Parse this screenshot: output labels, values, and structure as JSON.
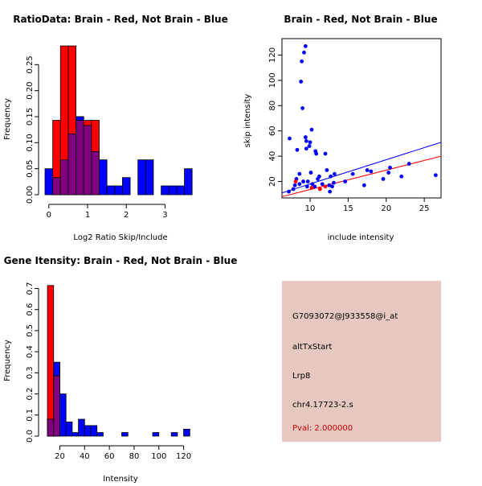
{
  "colors": {
    "brain": "#ff0000",
    "not_brain": "#0000ff",
    "overlap": "#800080",
    "info_bg": "#e6c8c0",
    "pval_text": "#cc0000"
  },
  "chart_data": [
    {
      "id": "ratio_hist",
      "type": "bar",
      "title": "RatioData: Brain - Red, Not Brain - Blue",
      "xlabel": "Log2 Ratio Skip/Include",
      "ylabel": "Frequency",
      "xlim": [
        -0.1,
        3.8
      ],
      "ylim": [
        0,
        0.3
      ],
      "xticks": [
        0,
        1,
        2,
        3
      ],
      "yticks": [
        0.0,
        0.05,
        0.1,
        0.15,
        0.2,
        0.25
      ],
      "ytick_labels": [
        "0.00",
        "0.05",
        "0.10",
        "0.15",
        "0.20",
        "0.25"
      ],
      "bin_width": 0.2,
      "series": [
        {
          "name": "Not Brain",
          "color": "blue",
          "bin_starts": [
            -0.1,
            0.1,
            0.3,
            0.5,
            0.7,
            0.9,
            1.1,
            1.3,
            1.5,
            1.7,
            1.9,
            2.1,
            2.3,
            2.5,
            2.7,
            2.9,
            3.1,
            3.3,
            3.5
          ],
          "values": [
            0.05,
            0.033,
            0.067,
            0.117,
            0.15,
            0.133,
            0.083,
            0.067,
            0.017,
            0.017,
            0.033,
            0,
            0.067,
            0.067,
            0,
            0.017,
            0.017,
            0.017,
            0.05
          ]
        },
        {
          "name": "Brain",
          "color": "red",
          "bin_starts": [
            0.1,
            0.3,
            0.5,
            0.7,
            0.9,
            1.1
          ],
          "values": [
            0.143,
            0.286,
            0.286,
            0.143,
            0.143,
            0.143
          ]
        }
      ]
    },
    {
      "id": "scatter",
      "type": "scatter",
      "title": "Brain - Red, Not Brain - Blue",
      "xlabel": "include intensity",
      "ylabel": "skip intensity",
      "xlim": [
        6.3,
        27.2
      ],
      "ylim": [
        7,
        133
      ],
      "xticks": [
        10,
        15,
        20,
        25
      ],
      "yticks": [
        20,
        40,
        60,
        80,
        100,
        120
      ],
      "series": [
        {
          "name": "Not Brain",
          "color": "blue",
          "points": [
            [
              7.2,
              12
            ],
            [
              7.3,
              54
            ],
            [
              7.8,
              14
            ],
            [
              8.0,
              17
            ],
            [
              8.2,
              22
            ],
            [
              8.3,
              45
            ],
            [
              8.6,
              18
            ],
            [
              8.6,
              26
            ],
            [
              8.8,
              99
            ],
            [
              8.9,
              115
            ],
            [
              9.0,
              78
            ],
            [
              9.1,
              20
            ],
            [
              9.2,
              122
            ],
            [
              9.4,
              127
            ],
            [
              9.4,
              55
            ],
            [
              9.5,
              52
            ],
            [
              9.5,
              46
            ],
            [
              9.6,
              16
            ],
            [
              9.7,
              20
            ],
            [
              9.9,
              48
            ],
            [
              10.0,
              51
            ],
            [
              10.1,
              27
            ],
            [
              10.2,
              61
            ],
            [
              10.3,
              18
            ],
            [
              10.6,
              16
            ],
            [
              10.7,
              44
            ],
            [
              10.8,
              42
            ],
            [
              11.0,
              22
            ],
            [
              11.2,
              24
            ],
            [
              11.6,
              18
            ],
            [
              12.0,
              42
            ],
            [
              12.2,
              29
            ],
            [
              12.5,
              17
            ],
            [
              12.6,
              12
            ],
            [
              12.7,
              24
            ],
            [
              12.9,
              16
            ],
            [
              13.1,
              19
            ],
            [
              13.2,
              26
            ],
            [
              14.6,
              20
            ],
            [
              15.6,
              26
            ],
            [
              17.1,
              17
            ],
            [
              17.5,
              29
            ],
            [
              18.0,
              28
            ],
            [
              19.6,
              22
            ],
            [
              20.3,
              27
            ],
            [
              20.5,
              31
            ],
            [
              22.0,
              24
            ],
            [
              23.0,
              34
            ],
            [
              26.5,
              25
            ]
          ]
        },
        {
          "name": "Brain",
          "color": "red",
          "points": [
            [
              8.1,
              20
            ],
            [
              10.2,
              15
            ],
            [
              11.3,
              14
            ],
            [
              12.0,
              16
            ]
          ]
        }
      ],
      "fit_lines": [
        {
          "name": "Not Brain",
          "color": "blue",
          "from": [
            6.3,
            11
          ],
          "to": [
            27.2,
            51
          ]
        },
        {
          "name": "Brain",
          "color": "red",
          "from": [
            6.3,
            8
          ],
          "to": [
            27.2,
            40
          ]
        }
      ]
    },
    {
      "id": "intensity_hist",
      "type": "bar",
      "title": "Gene Itensity: Brain - Red, Not Brain - Blue",
      "xlabel": "Intensity",
      "ylabel": "Frequency",
      "xlim": [
        8,
        130
      ],
      "ylim": [
        0,
        0.74
      ],
      "xticks": [
        20,
        40,
        60,
        80,
        100,
        120
      ],
      "yticks": [
        0.0,
        0.1,
        0.2,
        0.3,
        0.4,
        0.5,
        0.6,
        0.7
      ],
      "ytick_labels": [
        "0.0",
        "0.1",
        "0.2",
        "0.3",
        "0.4",
        "0.5",
        "0.6",
        "0.7"
      ],
      "bin_width": 5,
      "series": [
        {
          "name": "Not Brain",
          "color": "blue",
          "bin_starts": [
            10,
            15,
            20,
            25,
            30,
            35,
            40,
            45,
            50,
            55,
            60,
            65,
            70,
            75,
            80,
            85,
            90,
            95,
            100,
            105,
            110,
            115,
            120,
            125
          ],
          "values": [
            0.08,
            0.35,
            0.2,
            0.067,
            0.017,
            0.08,
            0.05,
            0.05,
            0.017,
            0,
            0,
            0,
            0.017,
            0,
            0,
            0,
            0,
            0.017,
            0,
            0,
            0.017,
            0,
            0.033,
            0
          ]
        },
        {
          "name": "Brain",
          "color": "red",
          "bin_starts": [
            10,
            15
          ],
          "values": [
            0.714,
            0.286
          ]
        }
      ]
    }
  ],
  "info_panel": {
    "probe_id": "G7093072@J933558@i_at",
    "event_type": "altTxStart",
    "gene": "Lrp8",
    "location": "chr4.17723-2.s",
    "pval": "Pval: 2.000000"
  }
}
